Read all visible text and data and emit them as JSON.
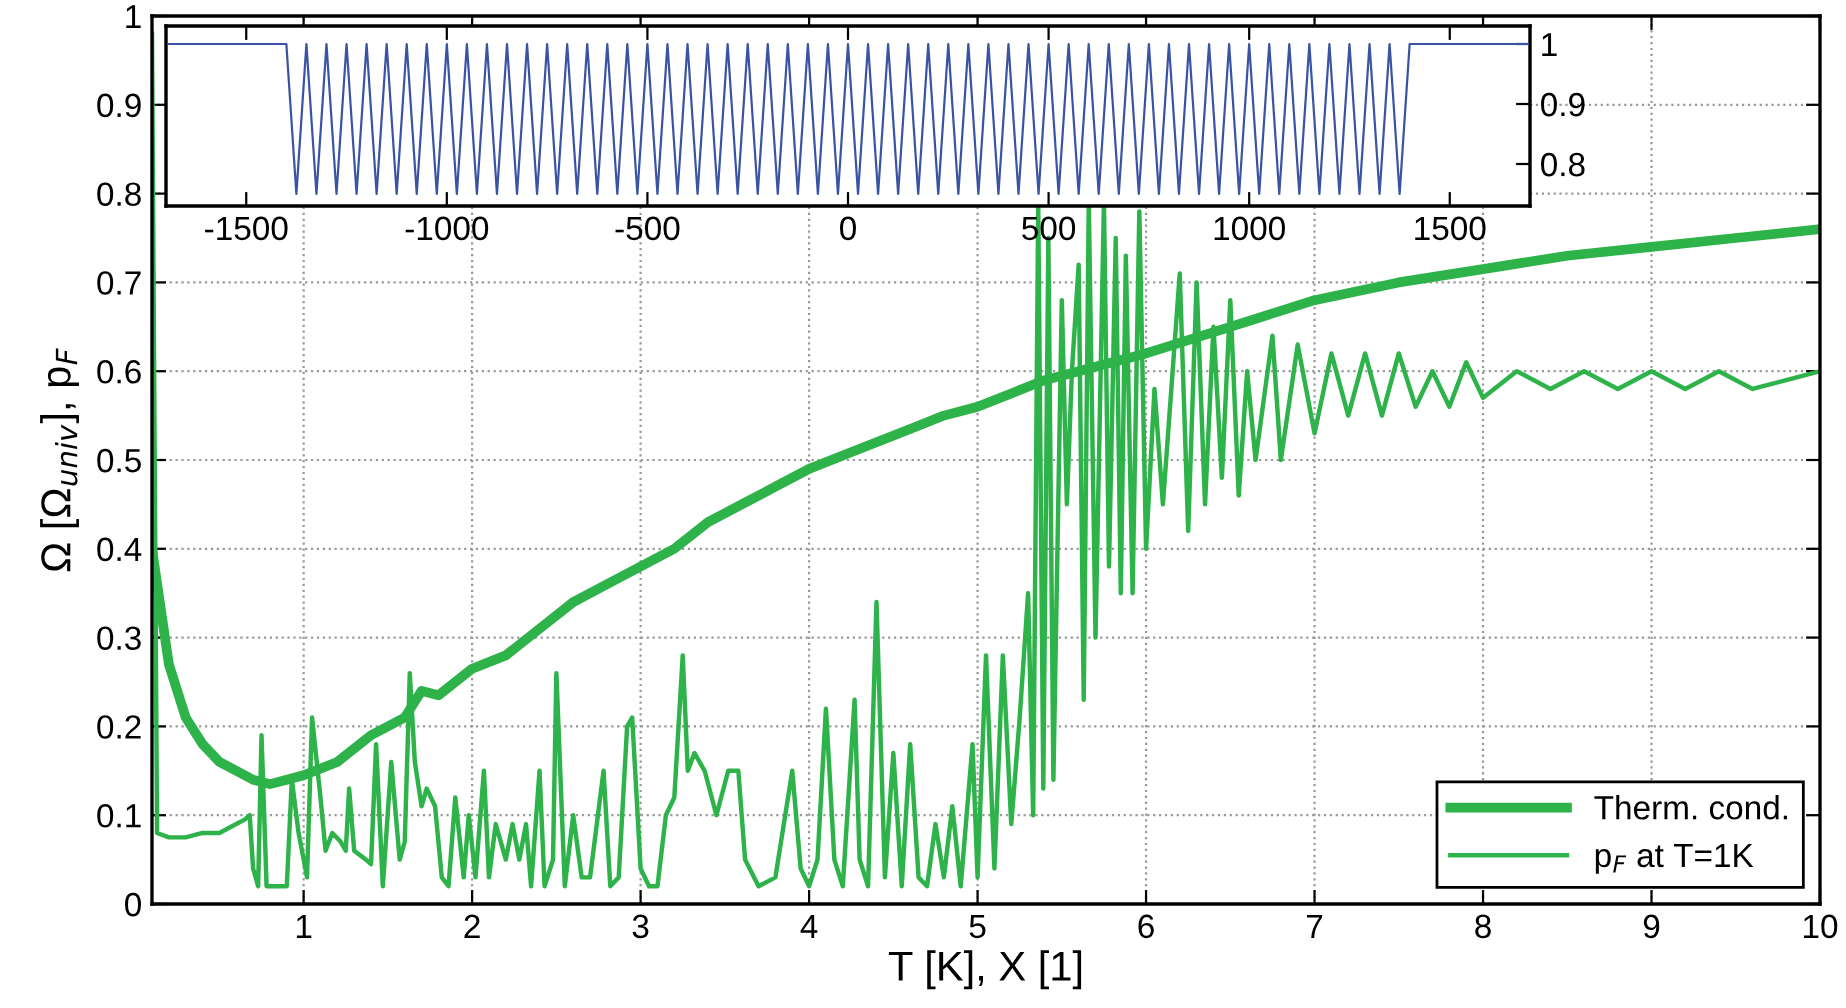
{
  "chart_data": [
    {
      "type": "line",
      "xlabel": "T [K], X [1]",
      "ylabel": "Ω [Ω$_{univ}$], p$_{F}$",
      "xlim": [
        0.1,
        10
      ],
      "xticks": [
        1,
        2,
        3,
        4,
        5,
        6,
        7,
        8,
        9,
        10
      ],
      "ylim": [
        0,
        1
      ],
      "yticks": [
        0,
        0.1,
        0.2,
        0.3,
        0.4,
        0.5,
        0.6,
        0.7,
        0.8,
        0.9,
        1
      ],
      "grid": true,
      "legend": "bottom right",
      "line_style": "solid",
      "marker": "none",
      "series": [
        {
          "name": "Therm. cond.",
          "color": "#2db34a",
          "x": [
            0.1,
            0.2,
            0.3,
            0.4,
            0.5,
            0.6,
            0.7,
            0.8,
            0.9,
            1.0,
            1.2,
            1.4,
            1.6,
            1.7,
            1.8,
            2.0,
            2.2,
            2.4,
            2.6,
            2.8,
            3.0,
            3.2,
            3.4,
            3.6,
            3.8,
            4.0,
            4.2,
            4.4,
            4.6,
            4.8,
            5.0,
            5.2,
            5.4,
            5.6,
            5.8,
            6.0,
            6.5,
            7.0,
            7.5,
            8.0,
            8.5,
            9.0,
            9.5,
            10
          ],
          "values": [
            0.4,
            0.27,
            0.21,
            0.18,
            0.16,
            0.15,
            0.14,
            0.135,
            0.14,
            0.145,
            0.16,
            0.19,
            0.21,
            0.24,
            0.235,
            0.265,
            0.28,
            0.31,
            0.34,
            0.36,
            0.38,
            0.4,
            0.43,
            0.45,
            0.47,
            0.49,
            0.505,
            0.52,
            0.535,
            0.55,
            0.56,
            0.575,
            0.59,
            0.6,
            0.61,
            0.62,
            0.65,
            0.68,
            0.7,
            0.715,
            0.73,
            0.74,
            0.75,
            0.76
          ]
        },
        {
          "name": "p$_{F}$ at T=1K",
          "color": "#2db34a",
          "x": [
            0.1,
            0.13,
            0.2,
            0.3,
            0.4,
            0.5,
            0.6,
            0.65,
            0.68,
            0.7,
            0.73,
            0.75,
            0.78,
            0.85,
            0.9,
            0.93,
            0.97,
            1.02,
            1.05,
            1.1,
            1.13,
            1.17,
            1.22,
            1.25,
            1.27,
            1.3,
            1.37,
            1.4,
            1.43,
            1.47,
            1.52,
            1.57,
            1.6,
            1.63,
            1.66,
            1.7,
            1.73,
            1.78,
            1.82,
            1.86,
            1.9,
            1.95,
            1.98,
            2.02,
            2.07,
            2.1,
            2.14,
            2.2,
            2.24,
            2.28,
            2.32,
            2.35,
            2.4,
            2.43,
            2.48,
            2.5,
            2.55,
            2.6,
            2.65,
            2.7,
            2.78,
            2.82,
            2.87,
            2.92,
            2.95,
            3.0,
            3.05,
            3.1,
            3.15,
            3.2,
            3.25,
            3.28,
            3.32,
            3.38,
            3.45,
            3.52,
            3.58,
            3.62,
            3.7,
            3.8,
            3.9,
            3.95,
            4.0,
            4.05,
            4.1,
            4.15,
            4.2,
            4.27,
            4.3,
            4.35,
            4.4,
            4.45,
            4.5,
            4.55,
            4.6,
            4.65,
            4.7,
            4.75,
            4.8,
            4.85,
            4.9,
            4.97,
            5.0,
            5.05,
            5.1,
            5.15,
            5.2,
            5.25,
            5.3,
            5.33,
            5.36,
            5.39,
            5.42,
            5.45,
            5.5,
            5.53,
            5.56,
            5.6,
            5.63,
            5.66,
            5.7,
            5.75,
            5.78,
            5.82,
            5.85,
            5.88,
            5.92,
            5.96,
            6.0,
            6.05,
            6.1,
            6.2,
            6.25,
            6.3,
            6.35,
            6.4,
            6.45,
            6.5,
            6.55,
            6.6,
            6.65,
            6.75,
            6.8,
            6.9,
            7.0,
            7.1,
            7.2,
            7.3,
            7.4,
            7.5,
            7.6,
            7.7,
            7.8,
            7.9,
            8.0,
            8.2,
            8.4,
            8.6,
            8.8,
            9.0,
            9.2,
            9.4,
            9.6,
            9.8,
            10.0
          ],
          "values": [
            0.98,
            0.08,
            0.075,
            0.075,
            0.08,
            0.08,
            0.09,
            0.095,
            0.1,
            0.04,
            0.02,
            0.19,
            0.02,
            0.02,
            0.02,
            0.14,
            0.08,
            0.03,
            0.21,
            0.12,
            0.06,
            0.08,
            0.07,
            0.06,
            0.13,
            0.06,
            0.05,
            0.045,
            0.18,
            0.02,
            0.16,
            0.05,
            0.07,
            0.26,
            0.16,
            0.11,
            0.13,
            0.11,
            0.03,
            0.02,
            0.12,
            0.03,
            0.1,
            0.03,
            0.15,
            0.03,
            0.09,
            0.05,
            0.09,
            0.05,
            0.09,
            0.02,
            0.15,
            0.02,
            0.05,
            0.26,
            0.02,
            0.1,
            0.03,
            0.03,
            0.15,
            0.02,
            0.03,
            0.2,
            0.21,
            0.04,
            0.02,
            0.02,
            0.1,
            0.12,
            0.28,
            0.15,
            0.17,
            0.15,
            0.1,
            0.15,
            0.15,
            0.05,
            0.02,
            0.03,
            0.15,
            0.04,
            0.02,
            0.05,
            0.22,
            0.05,
            0.02,
            0.23,
            0.05,
            0.02,
            0.34,
            0.03,
            0.17,
            0.02,
            0.18,
            0.03,
            0.02,
            0.09,
            0.03,
            0.11,
            0.02,
            0.18,
            0.03,
            0.28,
            0.04,
            0.28,
            0.09,
            0.21,
            0.35,
            0.1,
            0.79,
            0.13,
            0.75,
            0.14,
            0.68,
            0.45,
            0.6,
            0.72,
            0.23,
            0.79,
            0.3,
            0.79,
            0.38,
            0.75,
            0.35,
            0.73,
            0.35,
            0.78,
            0.4,
            0.58,
            0.45,
            0.71,
            0.42,
            0.7,
            0.45,
            0.65,
            0.48,
            0.68,
            0.46,
            0.6,
            0.5,
            0.64,
            0.5,
            0.63,
            0.53,
            0.62,
            0.55,
            0.62,
            0.55,
            0.62,
            0.56,
            0.6,
            0.56,
            0.61,
            0.57,
            0.6,
            0.58,
            0.6,
            0.58,
            0.6,
            0.58,
            0.6,
            0.58,
            0.59,
            0.6
          ]
        }
      ]
    },
    {
      "type": "line",
      "xlim": [
        -1700,
        1700
      ],
      "xticks": [
        -1500,
        -1000,
        -500,
        0,
        500,
        1000,
        1500
      ],
      "y2lim": [
        0.73,
        1.03
      ],
      "y2ticks": [
        0.8,
        0.9,
        1
      ],
      "grid": false,
      "marker": "none",
      "line_style": "solid",
      "series": [
        {
          "color": "#3a53a4",
          "axis": "y2",
          "x": [
            -1700,
            -1400,
            -1375,
            -1350,
            -1325,
            -1300,
            -1275,
            -1250,
            -1225,
            -1200,
            -1175,
            -1150,
            -1125,
            -1100,
            -1075,
            -1050,
            -1025,
            -1000,
            -975,
            -950,
            -925,
            -900,
            -875,
            -850,
            -825,
            -800,
            -775,
            -750,
            -725,
            -700,
            -675,
            -650,
            -625,
            -600,
            -575,
            -550,
            -525,
            -500,
            -475,
            -450,
            -425,
            -400,
            -375,
            -350,
            -325,
            -300,
            -275,
            -250,
            -225,
            -200,
            -175,
            -150,
            -125,
            -100,
            -75,
            -50,
            -25,
            0,
            25,
            50,
            75,
            100,
            125,
            150,
            175,
            200,
            225,
            250,
            275,
            300,
            325,
            350,
            375,
            400,
            425,
            450,
            475,
            500,
            525,
            550,
            575,
            600,
            625,
            650,
            675,
            700,
            725,
            750,
            775,
            800,
            825,
            850,
            875,
            900,
            925,
            950,
            975,
            1000,
            1025,
            1050,
            1075,
            1100,
            1125,
            1150,
            1175,
            1200,
            1225,
            1250,
            1275,
            1300,
            1325,
            1350,
            1375,
            1400,
            1700
          ],
          "values": [
            1,
            1,
            0.75,
            1,
            0.75,
            1,
            0.75,
            1,
            0.75,
            1,
            0.75,
            1,
            0.75,
            1,
            0.75,
            1,
            0.75,
            1,
            0.75,
            1,
            0.75,
            1,
            0.75,
            1,
            0.75,
            1,
            0.75,
            1,
            0.75,
            1,
            0.75,
            1,
            0.75,
            1,
            0.75,
            1,
            0.75,
            1,
            0.75,
            1,
            0.75,
            1,
            0.75,
            1,
            0.75,
            1,
            0.75,
            1,
            0.75,
            1,
            0.75,
            1,
            0.75,
            1,
            0.75,
            1,
            0.75,
            1,
            0.75,
            1,
            0.75,
            1,
            0.75,
            1,
            0.75,
            1,
            0.75,
            1,
            0.75,
            1,
            0.75,
            1,
            0.75,
            1,
            0.75,
            1,
            0.75,
            1,
            0.75,
            1,
            0.75,
            1,
            0.75,
            1,
            0.75,
            1,
            0.75,
            1,
            0.75,
            1,
            0.75,
            1,
            0.75,
            1,
            0.75,
            1,
            0.75,
            1,
            0.75,
            1,
            0.75,
            1,
            0.75,
            1,
            0.75,
            1,
            0.75,
            1,
            0.75,
            1,
            0.75,
            1,
            0.75,
            1,
            1
          ]
        }
      ]
    }
  ]
}
